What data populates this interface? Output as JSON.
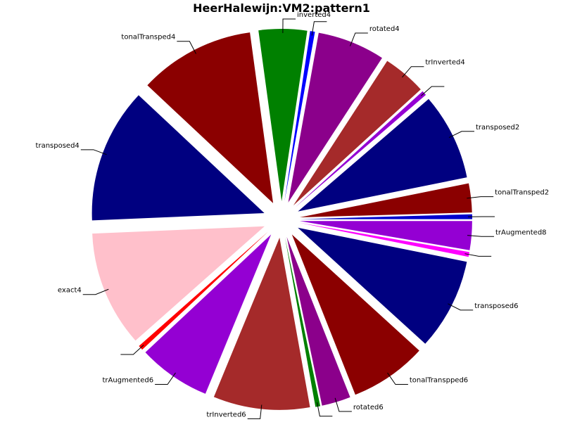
{
  "chart_data": {
    "type": "pie",
    "title": "HeerHalewijn:VM2:pattern1",
    "start_angle_deg": 0,
    "direction": "counterclockwise",
    "explode": true,
    "slices": [
      {
        "label": "",
        "value": 0.5,
        "color": "#0000cd"
      },
      {
        "label": "tonalTransped2",
        "value": 3,
        "color": "#8b0000"
      },
      {
        "label": "transposed2",
        "value": 9,
        "color": "#000080"
      },
      {
        "label": "",
        "value": 0.5,
        "color": "#9400d3"
      },
      {
        "label": "trInverted4",
        "value": 4.5,
        "color": "#a52a2a"
      },
      {
        "label": "rotated4",
        "value": 7,
        "color": "#8b008b"
      },
      {
        "label": "",
        "value": 0.5,
        "color": "#0000ff"
      },
      {
        "label": "inverted4",
        "value": 5,
        "color": "#008000"
      },
      {
        "label": "tonalTransped4",
        "value": 12,
        "color": "#8b0000"
      },
      {
        "label": "transposed4",
        "value": 14,
        "color": "#000080"
      },
      {
        "label": "exact4",
        "value": 12,
        "color": "#ffc0cb"
      },
      {
        "label": "",
        "value": 0.5,
        "color": "#ff0000"
      },
      {
        "label": "trAugmented6",
        "value": 7.5,
        "color": "#9400d3"
      },
      {
        "label": "trInverted6",
        "value": 10,
        "color": "#a52a2a"
      },
      {
        "label": "",
        "value": 0.5,
        "color": "#008000"
      },
      {
        "label": "rotated6",
        "value": 3,
        "color": "#8b008b"
      },
      {
        "label": "tonalTranspped6",
        "value": 8,
        "color": "#8b0000"
      },
      {
        "label": "transposed6",
        "value": 9.5,
        "color": "#000080"
      },
      {
        "label": "",
        "value": 0.5,
        "color": "#ff00ff"
      },
      {
        "label": "trAugmented8",
        "value": 3,
        "color": "#9400d3"
      }
    ]
  }
}
